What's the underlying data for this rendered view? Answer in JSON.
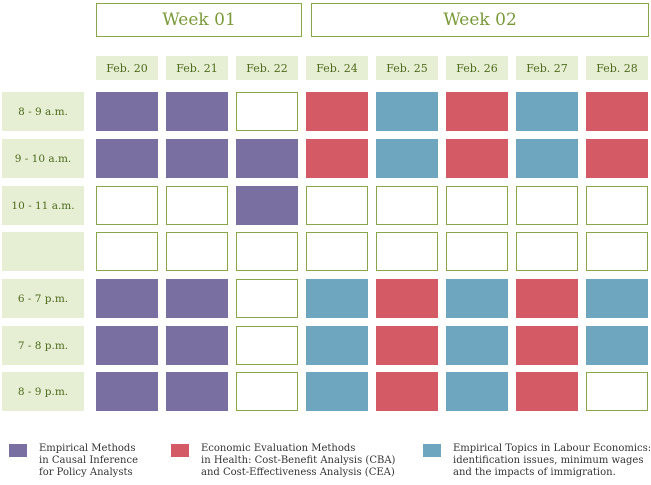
{
  "weeks": [
    "Week 01",
    "Week 02"
  ],
  "dates": [
    "Feb. 20",
    "Feb. 21",
    "Feb. 22",
    "Feb. 24",
    "Feb. 25",
    "Feb. 26",
    "Feb. 27",
    "Feb. 28"
  ],
  "times": [
    "8 - 9 a.m.",
    "9 - 10 a.m.",
    "10 - 11 a.m.",
    "",
    "6 - 7 p.m.",
    "7 - 8 p.m.",
    "8 - 9 p.m."
  ],
  "schedule": [
    [
      1,
      1,
      0,
      2,
      3,
      2,
      3,
      2
    ],
    [
      1,
      1,
      1,
      2,
      3,
      2,
      3,
      2
    ],
    [
      0,
      0,
      1,
      0,
      0,
      0,
      0,
      0
    ],
    [
      0,
      0,
      0,
      0,
      0,
      0,
      0,
      0
    ],
    [
      1,
      1,
      0,
      3,
      2,
      3,
      2,
      3
    ],
    [
      1,
      1,
      0,
      3,
      2,
      3,
      2,
      3
    ],
    [
      1,
      1,
      0,
      3,
      2,
      3,
      2,
      0
    ]
  ],
  "courses": [
    {
      "color": "#7a6fa1",
      "lines": [
        "Empirical Methods",
        "in Causal Inference",
        "for Policy Analysts"
      ]
    },
    {
      "color": "#d45b66",
      "lines": [
        "Economic Evaluation Methods",
        "in Health: Cost-Benefit Analysis (CBA)",
        "and Cost-Effectiveness Analysis (CEA)"
      ]
    },
    {
      "color": "#6ea5bf",
      "lines": [
        "Empirical Topics in Labour Economics:",
        "identification issues, minimum wages",
        "and the impacts of immigration."
      ]
    }
  ]
}
